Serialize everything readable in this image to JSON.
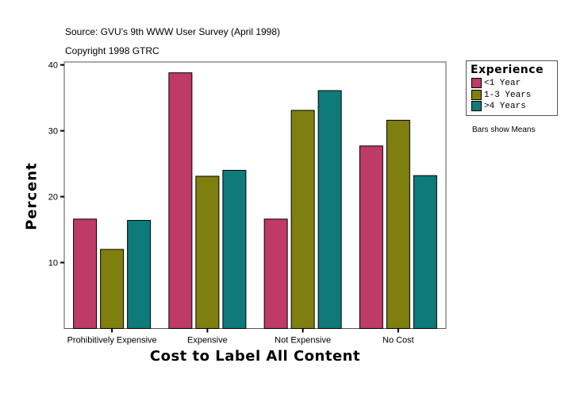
{
  "chart_data": {
    "type": "bar",
    "title": "Source: GVU's 9th WWW User Survey (April 1998)",
    "subtitle": "Copyright 1998 GTRC",
    "xlabel": "Cost to Label All Content",
    "ylabel": "Percent",
    "categories": [
      "Prohibitively Expensive",
      "Expensive",
      "Not Expensive",
      "No Cost"
    ],
    "series": [
      {
        "name": "<1 Year",
        "color": "#BE3A67",
        "values": [
          16.6,
          38.8,
          16.6,
          27.7
        ]
      },
      {
        "name": "1-3 Years",
        "color": "#7F7F10",
        "values": [
          12.0,
          23.1,
          33.1,
          31.6
        ]
      },
      {
        "name": ">4 Years",
        "color": "#0E7A7A",
        "values": [
          16.4,
          24.0,
          36.1,
          23.2
        ]
      }
    ],
    "yticks": [
      "10",
      "20",
      "30",
      "40"
    ],
    "ylim": [
      0,
      40
    ],
    "grid": false,
    "legend": {
      "title": "Experience",
      "placement": "top-right"
    },
    "note": "Bars show Means"
  }
}
